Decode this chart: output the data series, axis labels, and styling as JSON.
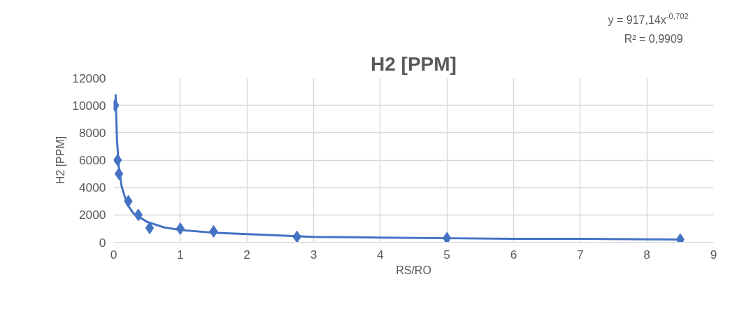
{
  "chart_data": {
    "type": "scatter",
    "title": "H2 [PPM]",
    "xlabel": "RS/RO",
    "ylabel": "H2 [PPM]",
    "xlim": [
      0,
      9
    ],
    "xticks": [
      0,
      1,
      2,
      3,
      4,
      5,
      6,
      7,
      8,
      9
    ],
    "ylim": [
      0,
      12000
    ],
    "yticks": [
      0,
      2000,
      4000,
      6000,
      8000,
      10000,
      12000
    ],
    "grid": true,
    "marker": "diamond",
    "series": [
      {
        "color": "#4472c4",
        "x": [
          0.02,
          0.06,
          0.08,
          0.22,
          0.37,
          0.54,
          1,
          1.5,
          2.75,
          5,
          8.5
        ],
        "values": [
          10000,
          6000,
          5000,
          3000,
          2000,
          1050,
          1000,
          800,
          400,
          300,
          200
        ]
      },
      {
        "type": "line",
        "color": "#4472c4",
        "marker": "none",
        "line_style": "solid",
        "x": [
          0.03,
          0.05,
          0.08,
          0.12,
          0.2,
          0.3,
          0.5,
          0.75,
          1,
          1.5,
          2,
          3,
          4,
          5,
          6,
          7,
          8.5
        ],
        "values": [
          10800,
          7500,
          5400,
          4100,
          2800,
          2100,
          1500,
          1100,
          900,
          700,
          600,
          400,
          350,
          300,
          250,
          250,
          200
        ]
      }
    ],
    "annotations": [
      "y = 917,14x$^{-0,702}$",
      "R² = 0,9909"
    ]
  }
}
